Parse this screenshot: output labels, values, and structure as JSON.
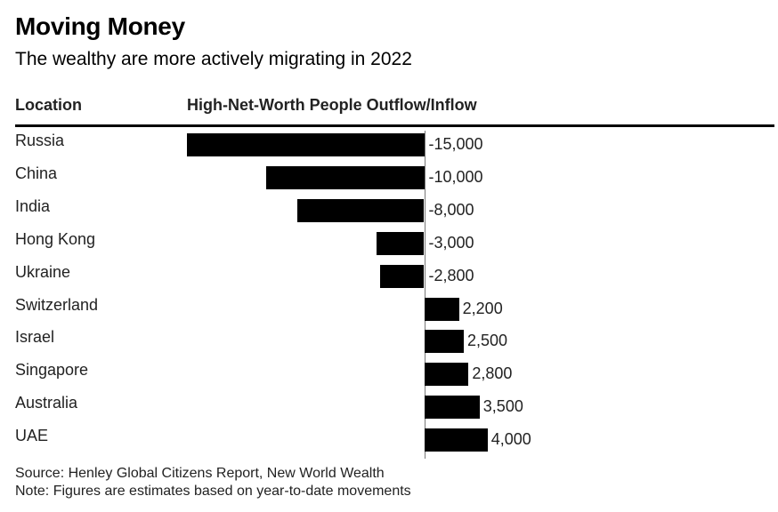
{
  "header": {
    "title": "Moving Money",
    "subtitle": "The wealthy are more actively migrating in 2022"
  },
  "columns": {
    "location": "Location",
    "value": "High-Net-Worth People Outflow/Inflow"
  },
  "chart_data": {
    "type": "bar",
    "orientation": "horizontal",
    "title": "Moving Money",
    "subtitle": "The wealthy are more actively migrating in 2022",
    "xlabel": "High-Net-Worth People Outflow/Inflow",
    "ylabel": "Location",
    "categories": [
      "Russia",
      "China",
      "India",
      "Hong Kong",
      "Ukraine",
      "Switzerland",
      "Israel",
      "Singapore",
      "Australia",
      "UAE"
    ],
    "values": [
      -15000,
      -10000,
      -8000,
      -3000,
      -2800,
      2200,
      2500,
      2800,
      3500,
      4000
    ],
    "value_labels": [
      "-15,000",
      "-10,000",
      "-8,000",
      "-3,000",
      "-2,800",
      "2,200",
      "2,500",
      "2,800",
      "3,500",
      "4,000"
    ],
    "xlim": [
      -15000,
      4000
    ],
    "grid": false
  },
  "footer": {
    "source": "Source: Henley Global Citizens Report, New World Wealth",
    "note": "Note: Figures are estimates based on year-to-date movements"
  }
}
